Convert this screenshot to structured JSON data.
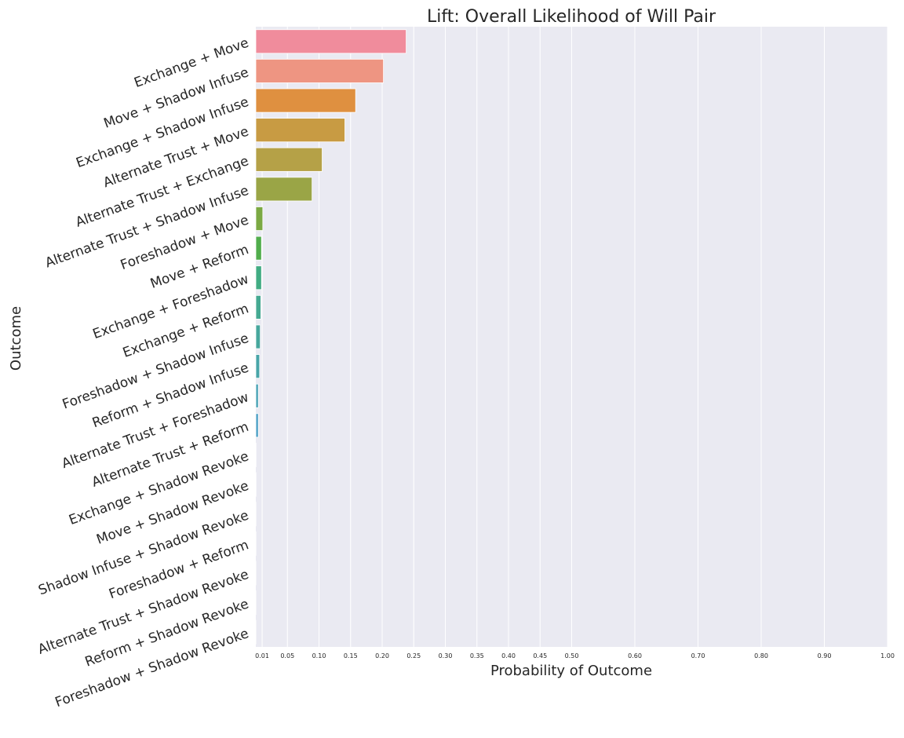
{
  "chart_data": {
    "type": "bar",
    "orientation": "horizontal",
    "title": "Lift: Overall Likelihood of Will Pair",
    "xlabel": "Probability of Outcome",
    "ylabel": "Outcome",
    "xlim": [
      0,
      1.0
    ],
    "xticks": [
      0.01,
      0.05,
      0.1,
      0.15,
      0.2,
      0.25,
      0.3,
      0.35,
      0.4,
      0.45,
      0.5,
      0.6,
      0.7,
      0.8,
      0.9,
      1.0
    ],
    "xtick_labels": [
      "0.01",
      "0.05",
      "0.10",
      "0.15",
      "0.20",
      "0.25",
      "0.30",
      "0.35",
      "0.40",
      "0.45",
      "0.50",
      "0.60",
      "0.70",
      "0.80",
      "0.90",
      "1.00"
    ],
    "grid": true,
    "categories": [
      "Exchange + Move",
      "Move + Shadow Infuse",
      "Exchange + Shadow Infuse",
      "Alternate Trust + Move",
      "Alternate Trust + Exchange",
      "Alternate Trust + Shadow Infuse",
      "Foreshadow + Move",
      "Move + Reform",
      "Exchange + Foreshadow",
      "Exchange + Reform",
      "Foreshadow + Shadow Infuse",
      "Reform + Shadow Infuse",
      "Alternate Trust + Foreshadow",
      "Alternate Trust + Reform",
      "Exchange + Shadow Revoke",
      "Move + Shadow Revoke",
      "Shadow Infuse + Shadow Revoke",
      "Foreshadow + Reform",
      "Alternate Trust + Shadow Revoke",
      "Reform + Shadow Revoke",
      "Foreshadow + Shadow Revoke"
    ],
    "values": [
      0.238,
      0.202,
      0.158,
      0.141,
      0.105,
      0.089,
      0.011,
      0.009,
      0.009,
      0.008,
      0.007,
      0.006,
      0.004,
      0.004,
      0.0003,
      0.0003,
      0.0002,
      0.0002,
      0.0001,
      0.0001,
      0.0001
    ],
    "colors": [
      "#f08c9c",
      "#ee9582",
      "#df9040",
      "#c89b43",
      "#b5a147",
      "#9aa546",
      "#7ba943",
      "#51ad4c",
      "#41ac83",
      "#45a992",
      "#47a79d",
      "#48a5a8",
      "#4aa3b6",
      "#4ea1c6",
      "#7d98dc",
      "#a38ee3",
      "#c284e4",
      "#d87ade",
      "#e675c6",
      "#ea7bb1",
      "#ed809f"
    ]
  }
}
